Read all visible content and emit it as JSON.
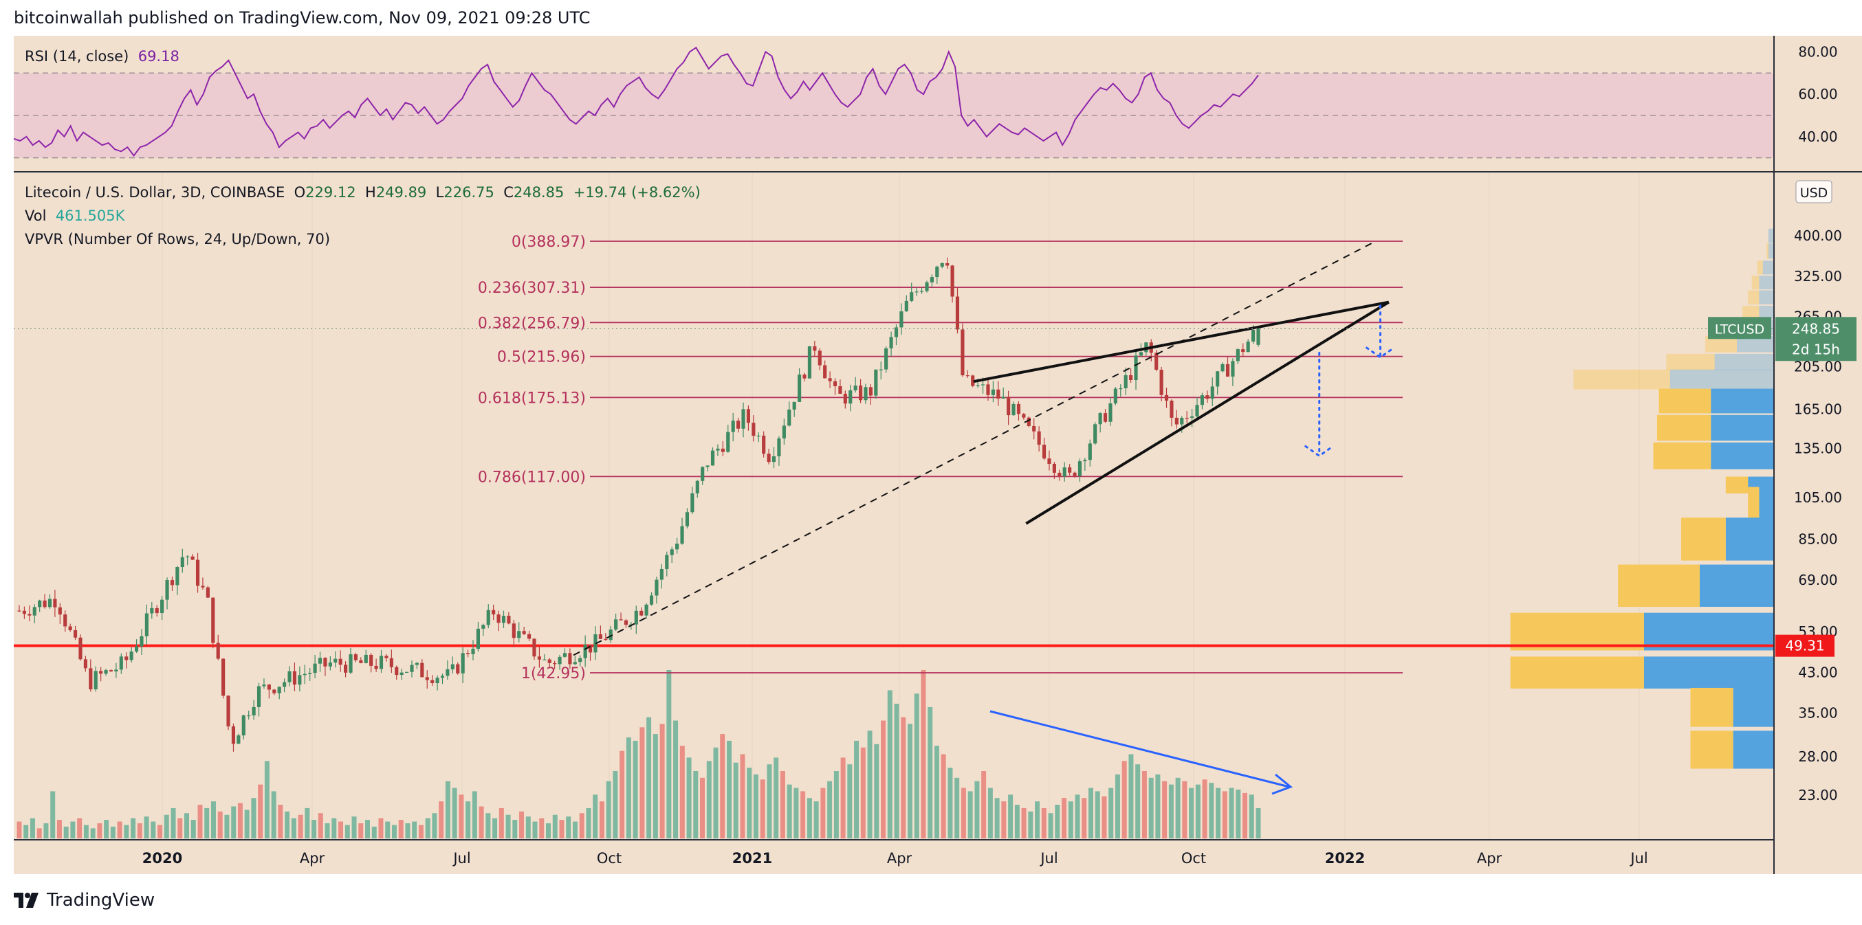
{
  "header": {
    "publisher_line": "bitcoinwallah published on TradingView.com, Nov 09, 2021 09:28 UTC"
  },
  "footer": {
    "brand": "TradingView"
  },
  "colors": {
    "background": "#f2e0cf",
    "rsi_band": "#e9c6d2",
    "rsi_line": "#8e24aa",
    "up": "#3e8a62",
    "down": "#b83c3c",
    "vol_up": "#7fb8a0",
    "vol_down": "#e98f85",
    "fib": "#b4315c",
    "support": "#ff1a1a",
    "trend": "#111111",
    "arrow": "#2962ff",
    "vp_up": "#54a3de",
    "vp_down": "#f6c75a"
  },
  "rsi_legend": {
    "label": "RSI (14, close)",
    "value": "69.18"
  },
  "main_legend": {
    "symbol": "Litecoin / U.S. Dollar, 3D, COINBASE",
    "open_label": "O",
    "open": "229.12",
    "high_label": "H",
    "high": "249.89",
    "low_label": "L",
    "low": "226.75",
    "close_label": "C",
    "close": "248.85",
    "change": "+19.74 (+8.62%)"
  },
  "vol_legend": {
    "label": "Vol",
    "value": "461.505K"
  },
  "vpvr_legend": {
    "label": "VPVR (Number Of Rows, 24, Up/Down, 70)"
  },
  "chart_data": [
    {
      "type": "line",
      "title": "RSI (14, close)",
      "scale": "linear",
      "ylim": [
        25,
        85
      ],
      "y_ticks": [
        "80.00",
        "60.00",
        "40.00"
      ],
      "band": [
        30,
        70
      ],
      "midline": 50,
      "last_value": 69.18,
      "series": [
        {
          "values": [
            39,
            38,
            40,
            36,
            38,
            35,
            37,
            43,
            40,
            45,
            38,
            42,
            40,
            38,
            36,
            37,
            34,
            33,
            35,
            31,
            35,
            36,
            38,
            40,
            42,
            45,
            52,
            58,
            62,
            55,
            60,
            68,
            71,
            73,
            76,
            70,
            64,
            58,
            60,
            52,
            46,
            42,
            35,
            38,
            40,
            42,
            39,
            44,
            45,
            48,
            44,
            47,
            50,
            52,
            49,
            55,
            58,
            54,
            50,
            53,
            48,
            52,
            56,
            55,
            51,
            54,
            50,
            46,
            48,
            52,
            55,
            58,
            64,
            68,
            72,
            74,
            66,
            62,
            58,
            54,
            57,
            64,
            70,
            66,
            62,
            60,
            56,
            52,
            48,
            46,
            49,
            52,
            50,
            55,
            58,
            54,
            60,
            64,
            66,
            68,
            63,
            60,
            58,
            62,
            67,
            72,
            75,
            80,
            82,
            77,
            72,
            75,
            78,
            79,
            74,
            70,
            65,
            64,
            72,
            80,
            78,
            68,
            62,
            58,
            61,
            66,
            62,
            66,
            70,
            65,
            60,
            56,
            54,
            57,
            60,
            68,
            72,
            64,
            60,
            66,
            72,
            74,
            70,
            62,
            60,
            66,
            68,
            72,
            80,
            73,
            50,
            45,
            48,
            44,
            40,
            43,
            46,
            44,
            42,
            41,
            44,
            42,
            40,
            38,
            40,
            42,
            36,
            41,
            48,
            52,
            56,
            60,
            63,
            62,
            65,
            62,
            58,
            56,
            60,
            68,
            70,
            62,
            58,
            56,
            50,
            46,
            44,
            47,
            50,
            52,
            55,
            54,
            57,
            60,
            59,
            62,
            65,
            69
          ]
        }
      ]
    },
    {
      "type": "candlestick",
      "title": "Litecoin / U.S. Dollar, 3D, COINBASE",
      "scale": "log",
      "ylim": [
        19,
        560
      ],
      "x_ticks": [
        "2020",
        "Apr",
        "Jul",
        "Oct",
        "2021",
        "Apr",
        "Jul",
        "Oct",
        "2022",
        "Apr",
        "Jul"
      ],
      "y_ticks": [
        "400.00",
        "325.00",
        "265.00",
        "205.00",
        "165.00",
        "135.00",
        "105.00",
        "85.00",
        "69.00",
        "53.00",
        "43.00",
        "35.00",
        "28.00",
        "23.00"
      ],
      "currency": "USD",
      "last_price": {
        "label": "LTCUSD",
        "value": "248.85",
        "countdown": "2d 15h"
      },
      "price_keyframes": [
        {
          "date": "2019-11-09",
          "price": 59
        },
        {
          "date": "2019-12-01",
          "price": 63
        },
        {
          "date": "2019-12-20",
          "price": 41
        },
        {
          "date": "2020-01-10",
          "price": 45
        },
        {
          "date": "2020-02-15",
          "price": 80
        },
        {
          "date": "2020-02-28",
          "price": 62
        },
        {
          "date": "2020-03-13",
          "price": 30
        },
        {
          "date": "2020-03-28",
          "price": 39
        },
        {
          "date": "2020-05-10",
          "price": 45
        },
        {
          "date": "2020-06-10",
          "price": 45
        },
        {
          "date": "2020-07-20",
          "price": 42
        },
        {
          "date": "2020-08-15",
          "price": 59
        },
        {
          "date": "2020-09-15",
          "price": 45
        },
        {
          "date": "2020-10-15",
          "price": 50
        },
        {
          "date": "2020-11-10",
          "price": 60
        },
        {
          "date": "2020-12-01",
          "price": 85
        },
        {
          "date": "2020-12-18",
          "price": 125
        },
        {
          "date": "2021-01-10",
          "price": 160
        },
        {
          "date": "2021-01-25",
          "price": 130
        },
        {
          "date": "2021-02-20",
          "price": 230
        },
        {
          "date": "2021-03-05",
          "price": 175
        },
        {
          "date": "2021-03-25",
          "price": 180
        },
        {
          "date": "2021-04-15",
          "price": 280
        },
        {
          "date": "2021-05-09",
          "price": 370
        },
        {
          "date": "2021-05-19",
          "price": 190
        },
        {
          "date": "2021-06-10",
          "price": 175
        },
        {
          "date": "2021-07-20",
          "price": 115
        },
        {
          "date": "2021-08-10",
          "price": 160
        },
        {
          "date": "2021-09-05",
          "price": 230
        },
        {
          "date": "2021-09-20",
          "price": 150
        },
        {
          "date": "2021-10-10",
          "price": 180
        },
        {
          "date": "2021-11-09",
          "price": 248.85
        }
      ],
      "last_candle": {
        "open": 229.12,
        "high": 249.89,
        "low": 226.75,
        "close": 248.85
      },
      "volume": {
        "label": "Vol",
        "last": "461.505K",
        "heights": [
          0.1,
          0.08,
          0.12,
          0.06,
          0.09,
          0.28,
          0.11,
          0.07,
          0.1,
          0.12,
          0.08,
          0.06,
          0.09,
          0.11,
          0.07,
          0.1,
          0.08,
          0.12,
          0.09,
          0.13,
          0.1,
          0.08,
          0.14,
          0.18,
          0.12,
          0.15,
          0.11,
          0.2,
          0.18,
          0.22,
          0.16,
          0.14,
          0.19,
          0.21,
          0.17,
          0.24,
          0.32,
          0.46,
          0.28,
          0.2,
          0.16,
          0.12,
          0.14,
          0.18,
          0.11,
          0.15,
          0.09,
          0.12,
          0.1,
          0.08,
          0.13,
          0.09,
          0.11,
          0.07,
          0.12,
          0.1,
          0.08,
          0.11,
          0.09,
          0.1,
          0.08,
          0.12,
          0.15,
          0.22,
          0.34,
          0.3,
          0.26,
          0.22,
          0.28,
          0.19,
          0.15,
          0.12,
          0.18,
          0.14,
          0.11,
          0.16,
          0.13,
          0.1,
          0.12,
          0.09,
          0.14,
          0.11,
          0.13,
          0.1,
          0.15,
          0.18,
          0.26,
          0.22,
          0.34,
          0.4,
          0.52,
          0.6,
          0.58,
          0.66,
          0.72,
          0.62,
          0.68,
          1.0,
          0.7,
          0.55,
          0.48,
          0.4,
          0.36,
          0.46,
          0.54,
          0.62,
          0.58,
          0.45,
          0.5,
          0.42,
          0.38,
          0.35,
          0.44,
          0.48,
          0.4,
          0.32,
          0.3,
          0.28,
          0.24,
          0.22,
          0.3,
          0.34,
          0.4,
          0.48,
          0.44,
          0.58,
          0.54,
          0.64,
          0.56,
          0.7,
          0.88,
          0.8,
          0.72,
          0.68,
          0.86,
          1.0,
          0.78,
          0.55,
          0.5,
          0.42,
          0.36,
          0.3,
          0.28,
          0.34,
          0.4,
          0.3,
          0.24,
          0.22,
          0.26,
          0.2,
          0.18,
          0.16,
          0.22,
          0.18,
          0.15,
          0.2,
          0.24,
          0.22,
          0.26,
          0.24,
          0.3,
          0.28,
          0.25,
          0.3,
          0.38,
          0.46,
          0.5,
          0.44,
          0.4,
          0.36,
          0.38,
          0.34,
          0.32,
          0.36,
          0.34,
          0.3,
          0.32,
          0.35,
          0.33,
          0.3,
          0.28,
          0.3,
          0.29,
          0.27,
          0.26,
          0.18
        ]
      },
      "fibonacci": [
        {
          "label": "0(388.97)",
          "price": 388.97
        },
        {
          "label": "0.236(307.31)",
          "price": 307.31
        },
        {
          "label": "0.382(256.79)",
          "price": 256.79
        },
        {
          "label": "0.5(215.96)",
          "price": 215.96
        },
        {
          "label": "0.618(175.13)",
          "price": 175.13
        },
        {
          "label": "0.786(117.00)",
          "price": 117.0
        },
        {
          "label": "1(42.95)",
          "price": 42.95
        }
      ],
      "support_line": {
        "price": 49.31,
        "label": "49.31"
      },
      "drawings": {
        "upper_trendline": [
          {
            "date": "2021-05-25",
            "price": 190
          },
          {
            "date": "2022-01-25",
            "price": 285
          }
        ],
        "lower_trendline": [
          {
            "date": "2021-06-25",
            "price": 92
          },
          {
            "date": "2022-01-25",
            "price": 285
          }
        ],
        "dashed_trendline": [
          {
            "date": "2020-10-01",
            "price": 47
          },
          {
            "date": "2022-01-15",
            "price": 385
          }
        ],
        "target_arrow_short": [
          {
            "date": "2022-01-20",
            "price": 280
          },
          {
            "date": "2022-01-20",
            "price": 215
          }
        ],
        "target_arrow_long": [
          {
            "date": "2021-12-15",
            "price": 220
          },
          {
            "date": "2021-12-15",
            "price": 130
          }
        ],
        "volume_trend_arrow": "decreasing"
      },
      "vpvr": {
        "label": "VPVR (Number Of Rows, 24, Up/Down, 70)",
        "rows": [
          {
            "price": 400,
            "up": 0.015,
            "down": 0.0
          },
          {
            "price": 370,
            "up": 0.015,
            "down": 0.005
          },
          {
            "price": 340,
            "up": 0.03,
            "down": 0.015
          },
          {
            "price": 315,
            "up": 0.04,
            "down": 0.02
          },
          {
            "price": 292,
            "up": 0.04,
            "down": 0.03
          },
          {
            "price": 270,
            "up": 0.04,
            "down": 0.045
          },
          {
            "price": 250,
            "up": 0.08,
            "down": 0.06
          },
          {
            "price": 230,
            "up": 0.1,
            "down": 0.085
          },
          {
            "price": 210,
            "up": 0.16,
            "down": 0.13
          },
          {
            "price": 192,
            "up": 0.28,
            "down": 0.26
          },
          {
            "price": 172,
            "up": 0.17,
            "down": 0.14
          },
          {
            "price": 150,
            "up": 0.17,
            "down": 0.145
          },
          {
            "price": 130,
            "up": 0.17,
            "down": 0.155
          },
          {
            "price": 112,
            "up": 0.07,
            "down": 0.06
          },
          {
            "price": 102,
            "up": 0.04,
            "down": 0.03
          },
          {
            "price": 85,
            "up": 0.13,
            "down": 0.12
          },
          {
            "price": 67,
            "up": 0.2,
            "down": 0.22
          },
          {
            "price": 53,
            "up": 0.35,
            "down": 0.36
          },
          {
            "price": 43,
            "up": 0.35,
            "down": 0.36
          },
          {
            "price": 36,
            "up": 0.11,
            "down": 0.115
          },
          {
            "price": 29,
            "up": 0.11,
            "down": 0.115
          }
        ]
      }
    }
  ]
}
